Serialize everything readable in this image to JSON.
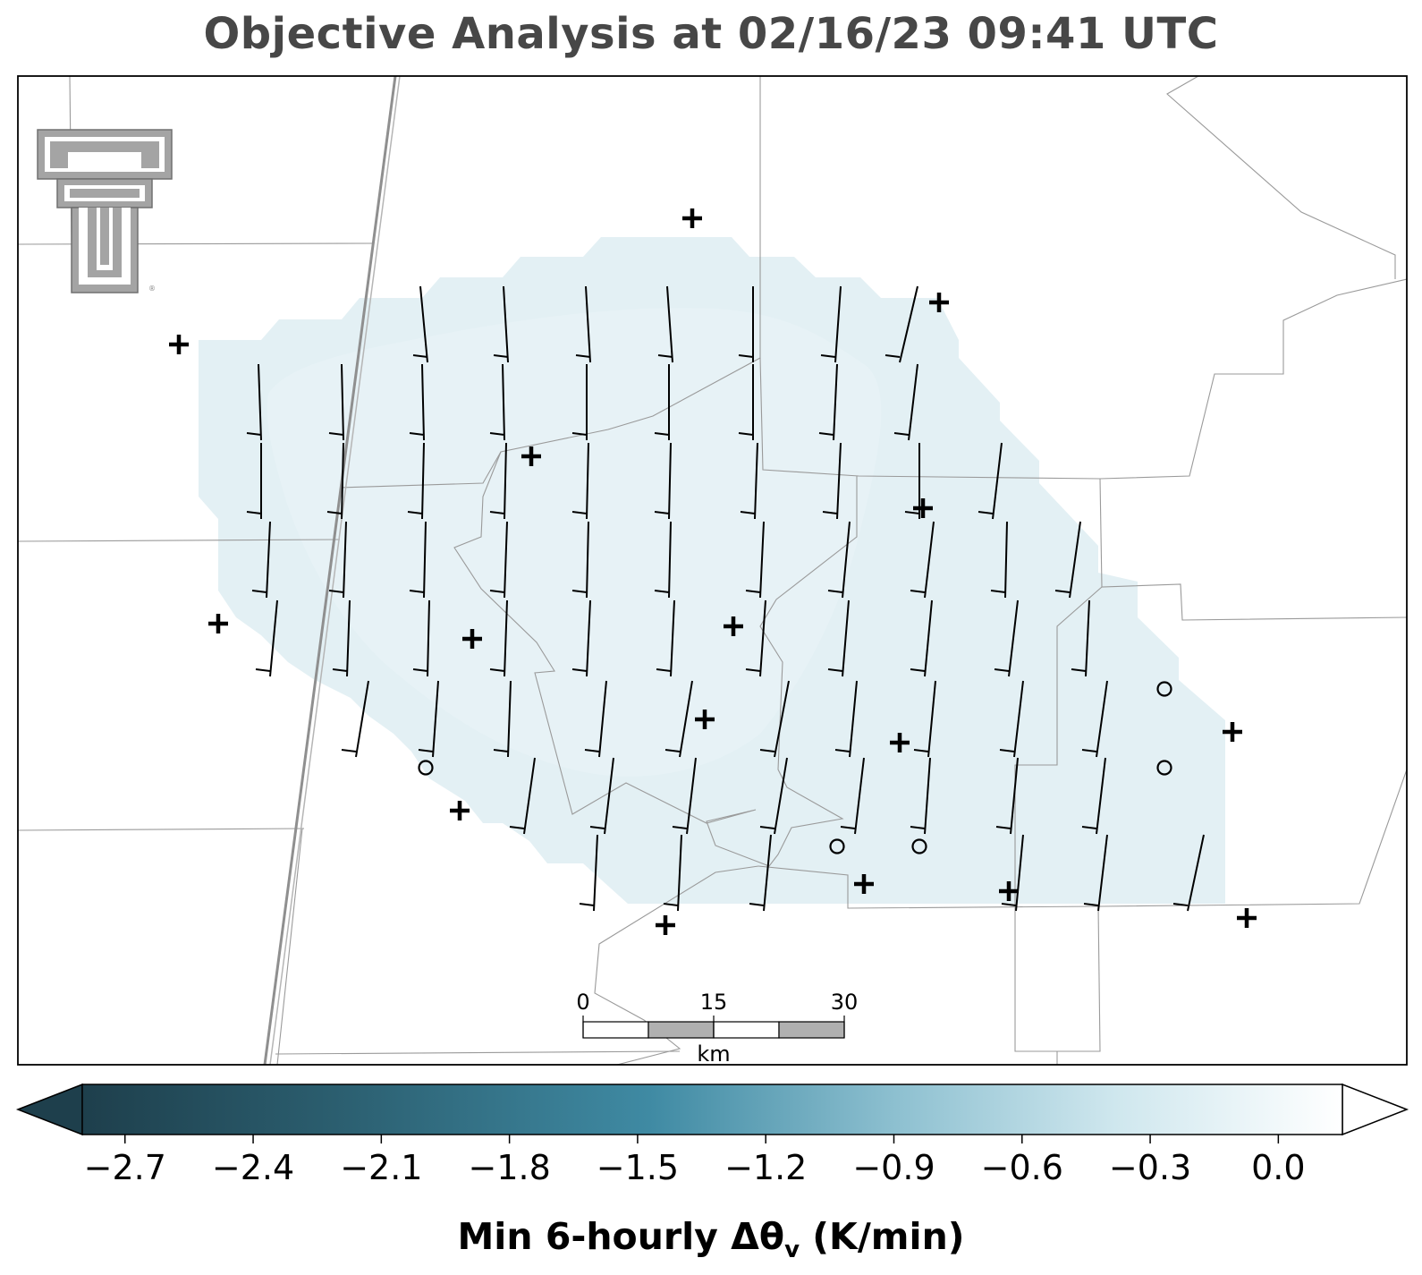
{
  "title": "Objective Analysis at 02/16/23 09:41 UTC",
  "colorbar": {
    "label_main": "Min 6-hourly Δθ",
    "label_sub": "v",
    "label_unit": " (K/min)",
    "vmin": -2.8,
    "vmax": 0.15,
    "ticks": [
      {
        "value": -2.7,
        "label": "−2.7"
      },
      {
        "value": -2.4,
        "label": "−2.4"
      },
      {
        "value": -2.1,
        "label": "−2.1"
      },
      {
        "value": -1.8,
        "label": "−1.8"
      },
      {
        "value": -1.5,
        "label": "−1.5"
      },
      {
        "value": -1.2,
        "label": "−1.2"
      },
      {
        "value": -0.9,
        "label": "−0.9"
      },
      {
        "value": -0.6,
        "label": "−0.6"
      },
      {
        "value": -0.3,
        "label": "−0.3"
      },
      {
        "value": 0.0,
        "label": "0.0"
      }
    ],
    "colors": [
      "#1e3f4c",
      "#2b5e6f",
      "#3f8aa3",
      "#8fc1d1",
      "#cfe7ee",
      "#ffffff"
    ],
    "extend": "both"
  },
  "scalebar": {
    "ticks": [
      "0",
      "15",
      "30"
    ],
    "unit": "km"
  },
  "logo": "ttu-double-t-logo"
}
